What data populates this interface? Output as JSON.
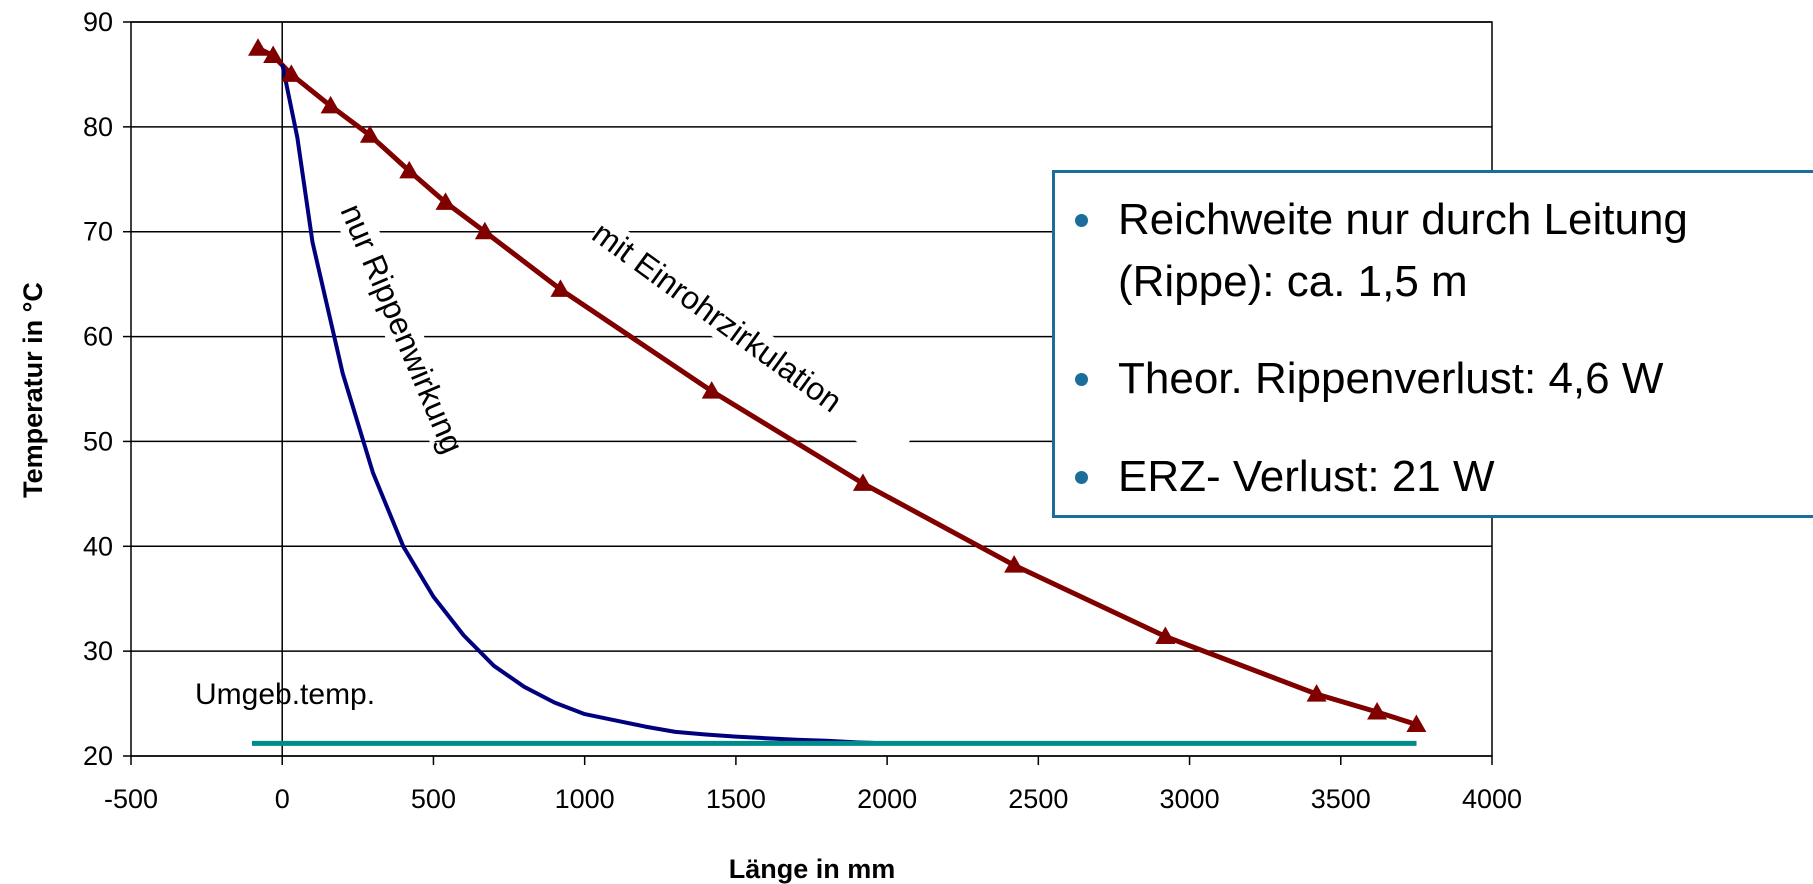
{
  "chart_data": {
    "type": "line",
    "xlabel": "Länge in mm",
    "ylabel": "Temperatur in °C",
    "xlim": [
      -500,
      4000
    ],
    "ylim": [
      20,
      90
    ],
    "x_ticks": [
      "-500",
      "0",
      "500",
      "1000",
      "1500",
      "2000",
      "2500",
      "3000",
      "3500",
      "4000"
    ],
    "y_ticks": [
      "20",
      "30",
      "40",
      "50",
      "60",
      "70",
      "80",
      90
    ],
    "grid": "horizontal",
    "series": [
      {
        "name": "mit Einrohrzirkulation",
        "color": "#800000",
        "marker": "triangle",
        "x": [
          -80,
          -30,
          30,
          160,
          290,
          420,
          540,
          670,
          920,
          1420,
          1920,
          2420,
          2920,
          3420,
          3620,
          3750
        ],
        "y": [
          87.5,
          86.8,
          85,
          82,
          79.2,
          75.8,
          72.8,
          70,
          64.5,
          54.8,
          46,
          38.2,
          31.4,
          25.9,
          24.2,
          23
        ]
      },
      {
        "name": "nur Rippenwirkung",
        "color": "#00007f",
        "marker": "none",
        "x": [
          0,
          50,
          100,
          200,
          300,
          400,
          500,
          600,
          700,
          800,
          900,
          1000,
          1100,
          1200,
          1300,
          1400,
          1500,
          1600,
          1700,
          1800,
          1900,
          2000,
          3750
        ],
        "y": [
          86,
          79,
          69,
          56.5,
          47,
          40,
          35.2,
          31.5,
          28.6,
          26.6,
          25.1,
          24,
          23.4,
          22.8,
          22.3,
          22.05,
          21.85,
          21.7,
          21.55,
          21.45,
          21.3,
          21.2,
          21.2
        ]
      },
      {
        "name": "Umgeb.temp.",
        "color": "#008b8b",
        "marker": "none",
        "x": [
          -100,
          3750
        ],
        "y": [
          21.2,
          21.2
        ]
      }
    ],
    "annotations": [
      "nur Rippenwirkung",
      "mit Einrohrzirkulation",
      "Umgeb.temp."
    ]
  },
  "info_box": {
    "items": [
      "Reichweite nur durch Leitung (Rippe): ca. 1,5 m",
      "Theor. Rippenverlust: 4,6 W",
      "ERZ- Verlust: 21 W"
    ],
    "bullet_color": "#1a6e99"
  }
}
